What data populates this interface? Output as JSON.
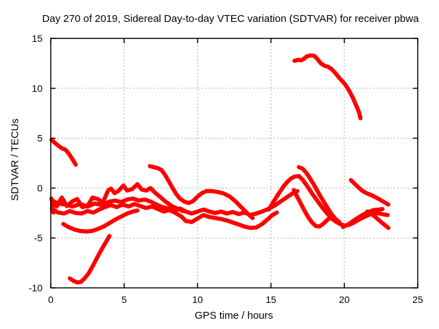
{
  "chart_data": {
    "type": "scatter",
    "title": "Day 270 of 2019, Sidereal Day-to-day VTEC variation (SDTVAR) for receiver pbwa",
    "xlabel": "GPS time / hours",
    "ylabel": "SDTVAR / TECUs",
    "xlim": [
      0,
      25
    ],
    "ylim": [
      -10,
      15
    ],
    "x_ticks": [
      0,
      5,
      10,
      15,
      20,
      25
    ],
    "y_ticks": [
      -10,
      -5,
      0,
      5,
      10,
      15
    ],
    "grid": true,
    "legend": "none",
    "point_color": "#ff0000",
    "grid_color": "#a9a9a9",
    "axis_color": "#000000",
    "series": [
      {
        "name": "track-01",
        "points": [
          [
            0.05,
            -1.05
          ],
          [
            0.12,
            -1.55
          ],
          [
            0.08,
            -2.05
          ],
          [
            0.18,
            -2.45
          ]
        ]
      },
      {
        "name": "track-02",
        "points": [
          [
            0.05,
            4.85
          ],
          [
            0.3,
            4.5
          ],
          [
            0.55,
            4.2
          ],
          [
            0.8,
            3.95
          ],
          [
            1.0,
            3.85
          ],
          [
            1.15,
            3.6
          ],
          [
            1.3,
            3.3
          ],
          [
            1.45,
            2.95
          ],
          [
            1.6,
            2.6
          ],
          [
            1.7,
            2.35
          ]
        ]
      },
      {
        "name": "track-03",
        "points": [
          [
            1.3,
            -9.05
          ],
          [
            1.55,
            -9.3
          ],
          [
            1.8,
            -9.45
          ],
          [
            2.05,
            -9.4
          ],
          [
            2.3,
            -9.05
          ],
          [
            2.6,
            -8.5
          ],
          [
            2.9,
            -7.7
          ],
          [
            3.2,
            -6.85
          ],
          [
            3.5,
            -6.05
          ],
          [
            3.8,
            -5.3
          ],
          [
            4.0,
            -4.8
          ]
        ]
      },
      {
        "name": "track-04",
        "points": [
          [
            0.85,
            -3.6
          ],
          [
            1.2,
            -3.9
          ],
          [
            1.6,
            -4.15
          ],
          [
            2.0,
            -4.3
          ],
          [
            2.4,
            -4.35
          ],
          [
            2.8,
            -4.3
          ],
          [
            3.2,
            -4.1
          ],
          [
            3.6,
            -3.85
          ],
          [
            4.0,
            -3.5
          ],
          [
            4.4,
            -3.15
          ],
          [
            4.8,
            -2.85
          ],
          [
            5.2,
            -2.55
          ],
          [
            5.6,
            -2.35
          ],
          [
            5.9,
            -2.25
          ]
        ]
      },
      {
        "name": "track-05",
        "points": [
          [
            0.1,
            -1.55
          ],
          [
            0.4,
            -1.85
          ],
          [
            0.75,
            -0.95
          ],
          [
            1.1,
            -1.8
          ],
          [
            1.45,
            -1.35
          ],
          [
            1.8,
            -1.1
          ],
          [
            2.15,
            -1.9
          ],
          [
            2.5,
            -1.8
          ],
          [
            2.85,
            -0.95
          ],
          [
            3.2,
            -1.1
          ],
          [
            3.55,
            -1.45
          ],
          [
            3.9,
            -0.25
          ],
          [
            4.1,
            -0.05
          ],
          [
            4.35,
            -0.5
          ],
          [
            4.6,
            -0.3
          ],
          [
            4.95,
            0.25
          ],
          [
            5.2,
            -0.25
          ],
          [
            5.55,
            -0.1
          ],
          [
            5.9,
            0.4
          ],
          [
            6.2,
            -0.15
          ],
          [
            6.5,
            -0.25
          ],
          [
            6.8,
            0.0
          ],
          [
            7.1,
            -0.45
          ],
          [
            7.5,
            -0.95
          ],
          [
            7.9,
            -1.45
          ],
          [
            8.3,
            -1.85
          ],
          [
            8.7,
            -2.1
          ],
          [
            9.0,
            -2.3
          ]
        ]
      },
      {
        "name": "track-06",
        "points": [
          [
            0.1,
            -2.1
          ],
          [
            0.5,
            -2.45
          ],
          [
            0.9,
            -2.55
          ],
          [
            1.3,
            -2.3
          ],
          [
            1.7,
            -2.5
          ],
          [
            2.1,
            -2.55
          ],
          [
            2.5,
            -2.3
          ],
          [
            2.9,
            -2.45
          ],
          [
            3.3,
            -2.15
          ],
          [
            3.7,
            -1.9
          ],
          [
            4.1,
            -1.7
          ],
          [
            4.5,
            -1.9
          ],
          [
            4.9,
            -1.65
          ],
          [
            5.3,
            -1.85
          ],
          [
            5.7,
            -1.6
          ],
          [
            6.1,
            -1.8
          ],
          [
            6.5,
            -2.0
          ],
          [
            6.9,
            -1.85
          ],
          [
            7.3,
            -2.1
          ],
          [
            7.7,
            -2.35
          ],
          [
            8.1,
            -2.2
          ],
          [
            8.5,
            -2.5
          ],
          [
            8.9,
            -2.85
          ],
          [
            9.2,
            -3.3
          ],
          [
            9.6,
            -3.4
          ],
          [
            10.0,
            -3.05
          ],
          [
            10.4,
            -2.7
          ],
          [
            10.8,
            -2.9
          ],
          [
            11.2,
            -3.0
          ],
          [
            11.6,
            -3.1
          ],
          [
            12.0,
            -3.25
          ],
          [
            12.4,
            -3.45
          ],
          [
            12.8,
            -3.65
          ],
          [
            13.2,
            -3.85
          ],
          [
            13.6,
            -4.0
          ],
          [
            14.0,
            -3.95
          ],
          [
            14.4,
            -3.6
          ],
          [
            14.8,
            -3.1
          ],
          [
            15.1,
            -2.7
          ],
          [
            15.4,
            -2.45
          ]
        ]
      },
      {
        "name": "track-07",
        "points": [
          [
            0.1,
            -1.25
          ],
          [
            0.5,
            -1.55
          ],
          [
            1.0,
            -1.65
          ],
          [
            1.5,
            -1.85
          ],
          [
            2.0,
            -1.6
          ],
          [
            2.5,
            -1.85
          ],
          [
            3.0,
            -1.55
          ],
          [
            3.5,
            -1.7
          ],
          [
            4.0,
            -1.35
          ],
          [
            4.4,
            -1.25
          ],
          [
            4.8,
            -1.4
          ],
          [
            5.2,
            -1.15
          ],
          [
            5.6,
            -1.05
          ],
          [
            6.0,
            -1.25
          ],
          [
            6.4,
            -1.15
          ],
          [
            6.8,
            -1.35
          ],
          [
            7.2,
            -1.65
          ],
          [
            7.6,
            -1.9
          ],
          [
            8.0,
            -2.05
          ],
          [
            8.4,
            -2.25
          ],
          [
            8.8,
            -2.05
          ],
          [
            9.2,
            -2.35
          ],
          [
            9.6,
            -2.55
          ],
          [
            10.0,
            -2.35
          ],
          [
            10.4,
            -2.15
          ],
          [
            10.8,
            -2.35
          ],
          [
            11.2,
            -2.5
          ],
          [
            11.6,
            -2.35
          ],
          [
            12.0,
            -2.55
          ],
          [
            12.4,
            -2.4
          ],
          [
            12.8,
            -2.6
          ],
          [
            13.2,
            -2.45
          ],
          [
            13.6,
            -2.7
          ],
          [
            14.0,
            -2.55
          ],
          [
            14.4,
            -2.35
          ],
          [
            14.8,
            -2.1
          ],
          [
            15.2,
            -1.8
          ],
          [
            15.6,
            -1.4
          ],
          [
            16.0,
            -1.0
          ],
          [
            16.4,
            -0.6
          ],
          [
            16.8,
            -0.3
          ]
        ]
      },
      {
        "name": "track-08",
        "points": [
          [
            6.75,
            2.2
          ],
          [
            7.0,
            2.1
          ],
          [
            7.3,
            2.0
          ],
          [
            7.55,
            1.8
          ],
          [
            7.8,
            1.3
          ],
          [
            8.05,
            0.65
          ],
          [
            8.3,
            0.0
          ],
          [
            8.55,
            -0.6
          ],
          [
            8.8,
            -1.05
          ],
          [
            9.1,
            -1.35
          ],
          [
            9.4,
            -1.5
          ],
          [
            9.7,
            -1.3
          ],
          [
            10.0,
            -0.85
          ],
          [
            10.3,
            -0.5
          ],
          [
            10.6,
            -0.3
          ],
          [
            11.0,
            -0.3
          ],
          [
            11.4,
            -0.4
          ],
          [
            11.8,
            -0.55
          ],
          [
            12.2,
            -0.85
          ],
          [
            12.6,
            -1.35
          ],
          [
            13.0,
            -1.95
          ],
          [
            13.4,
            -2.55
          ],
          [
            13.75,
            -3.0
          ]
        ]
      },
      {
        "name": "track-09",
        "points": [
          [
            14.85,
            -2.15
          ],
          [
            15.1,
            -1.55
          ],
          [
            15.35,
            -0.95
          ],
          [
            15.6,
            -0.4
          ],
          [
            15.85,
            0.15
          ],
          [
            16.1,
            0.6
          ],
          [
            16.35,
            0.95
          ],
          [
            16.6,
            1.15
          ],
          [
            16.9,
            1.2
          ],
          [
            17.15,
            0.85
          ],
          [
            17.4,
            0.35
          ],
          [
            17.65,
            -0.2
          ],
          [
            17.9,
            -0.75
          ],
          [
            18.2,
            -1.35
          ],
          [
            18.5,
            -1.95
          ],
          [
            18.8,
            -2.5
          ],
          [
            19.1,
            -3.0
          ],
          [
            19.4,
            -3.35
          ],
          [
            19.7,
            -3.6
          ],
          [
            20.0,
            -3.75
          ],
          [
            20.3,
            -3.7
          ],
          [
            20.6,
            -3.5
          ],
          [
            20.9,
            -3.25
          ],
          [
            21.2,
            -3.0
          ],
          [
            21.5,
            -2.8
          ],
          [
            21.8,
            -2.6
          ],
          [
            22.1,
            -2.5
          ],
          [
            22.4,
            -2.55
          ],
          [
            22.7,
            -2.65
          ],
          [
            22.95,
            -2.7
          ]
        ]
      },
      {
        "name": "track-10",
        "points": [
          [
            16.9,
            2.1
          ],
          [
            17.15,
            1.95
          ],
          [
            17.4,
            1.55
          ],
          [
            17.65,
            1.0
          ],
          [
            17.9,
            0.4
          ],
          [
            18.15,
            -0.25
          ],
          [
            18.4,
            -0.9
          ],
          [
            18.65,
            -1.5
          ],
          [
            18.9,
            -2.1
          ],
          [
            19.15,
            -2.65
          ],
          [
            19.4,
            -3.1
          ],
          [
            19.65,
            -3.4
          ]
        ]
      },
      {
        "name": "track-11",
        "points": [
          [
            16.55,
            -0.2
          ],
          [
            16.8,
            -0.9
          ],
          [
            17.05,
            -1.6
          ],
          [
            17.3,
            -2.3
          ],
          [
            17.55,
            -2.95
          ],
          [
            17.8,
            -3.45
          ],
          [
            18.05,
            -3.8
          ],
          [
            18.3,
            -3.85
          ],
          [
            18.55,
            -3.6
          ],
          [
            18.8,
            -3.25
          ],
          [
            19.05,
            -2.95
          ]
        ]
      },
      {
        "name": "track-12",
        "points": [
          [
            20.45,
            0.8
          ],
          [
            20.65,
            0.5
          ],
          [
            20.9,
            0.15
          ],
          [
            21.2,
            -0.25
          ],
          [
            21.5,
            -0.5
          ],
          [
            21.9,
            -0.75
          ],
          [
            22.3,
            -1.05
          ],
          [
            22.7,
            -1.4
          ],
          [
            23.0,
            -1.65
          ]
        ]
      },
      {
        "name": "track-13",
        "points": [
          [
            19.9,
            -3.9
          ],
          [
            20.25,
            -3.65
          ],
          [
            20.6,
            -3.3
          ],
          [
            20.95,
            -2.95
          ],
          [
            21.3,
            -2.65
          ],
          [
            21.65,
            -2.4
          ],
          [
            22.0,
            -2.2
          ],
          [
            22.35,
            -2.15
          ],
          [
            22.6,
            -2.1
          ]
        ]
      },
      {
        "name": "track-14",
        "points": [
          [
            21.55,
            -2.35
          ],
          [
            21.9,
            -2.65
          ],
          [
            22.2,
            -3.0
          ],
          [
            22.5,
            -3.4
          ],
          [
            22.8,
            -3.75
          ],
          [
            23.0,
            -4.0
          ]
        ]
      },
      {
        "name": "track-15",
        "points": [
          [
            16.6,
            12.75
          ],
          [
            16.85,
            12.85
          ],
          [
            17.05,
            12.8
          ],
          [
            17.25,
            12.95
          ],
          [
            17.45,
            13.2
          ],
          [
            17.7,
            13.3
          ],
          [
            17.95,
            13.25
          ],
          [
            18.15,
            12.95
          ],
          [
            18.4,
            12.5
          ],
          [
            18.65,
            12.25
          ],
          [
            18.9,
            12.15
          ],
          [
            19.15,
            11.9
          ],
          [
            19.4,
            11.5
          ],
          [
            19.65,
            11.05
          ],
          [
            19.9,
            10.65
          ],
          [
            20.1,
            10.3
          ],
          [
            20.35,
            9.7
          ],
          [
            20.6,
            9.0
          ],
          [
            20.8,
            8.3
          ],
          [
            21.0,
            7.6
          ],
          [
            21.1,
            7.0
          ]
        ]
      }
    ]
  }
}
